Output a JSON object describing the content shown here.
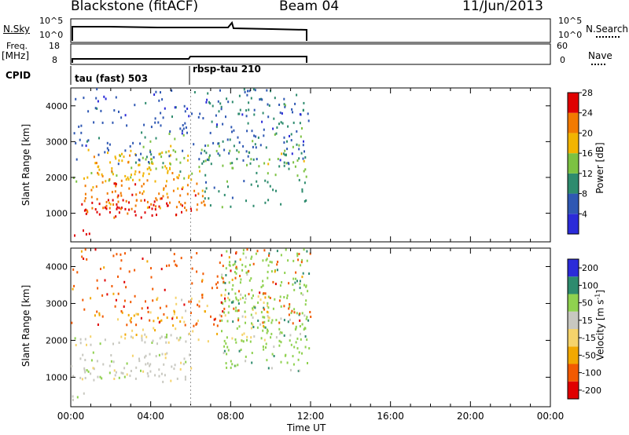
{
  "header": {
    "station": "Blackstone (fitACF)",
    "beam": "Beam 04",
    "date": "11/Jun/2013"
  },
  "side_labels": {
    "nsky": "N.Sky",
    "freq": "Freq.",
    "freq_unit": "[MHz]",
    "cpid": "CPID",
    "nsearch": "N.Search",
    "nave": "Nave"
  },
  "noise_panel": {
    "left_ticks": [
      "10^5",
      "10^0"
    ],
    "right_ticks": [
      "10^5",
      "10^0"
    ]
  },
  "freq_panel": {
    "left_ticks": [
      "18",
      "8"
    ],
    "right_ticks": [
      "60",
      "0"
    ]
  },
  "cpid_panel": {
    "segments": [
      {
        "label": "tau (fast) 503",
        "start_hour": 0
      },
      {
        "label": "rbsp-tau 210",
        "start_hour": 6
      }
    ]
  },
  "chart_data": [
    {
      "type": "heatmap",
      "name": "power",
      "ylabel": "Slant Range [km]",
      "xlim_hours": [
        0,
        24
      ],
      "ylim_km": [
        200,
        4500
      ],
      "yticks": [
        1000,
        2000,
        3000,
        4000
      ],
      "colorbar": {
        "label": "Power [dB]",
        "ticks": [
          "4",
          "8",
          "12",
          "16",
          "20",
          "24",
          "28"
        ],
        "colors": [
          "#2b2bd9",
          "#2f58b3",
          "#2e8b6e",
          "#7cc242",
          "#f2b400",
          "#f27a00",
          "#e00000"
        ]
      },
      "bands": [
        {
          "x": [
            0.0,
            0.9
          ],
          "y": [
            380,
            620
          ],
          "level": 6
        },
        {
          "x": [
            0.0,
            6.0
          ],
          "y": [
            900,
            1400
          ],
          "level": 6
        },
        {
          "x": [
            0.5,
            6.8
          ],
          "y": [
            1100,
            1900
          ],
          "level": 5
        },
        {
          "x": [
            0.0,
            6.0
          ],
          "y": [
            1900,
            2200
          ],
          "level": 4
        },
        {
          "x": [
            0.8,
            5.2
          ],
          "y": [
            2100,
            2800
          ],
          "level": 4
        },
        {
          "x": [
            3.5,
            12.0
          ],
          "y": [
            2000,
            3300
          ],
          "level": 3
        },
        {
          "x": [
            6.5,
            11.9
          ],
          "y": [
            1200,
            4500
          ],
          "level": 2
        },
        {
          "x": [
            0.0,
            12.0
          ],
          "y": [
            2400,
            4500
          ],
          "level": 1
        }
      ]
    },
    {
      "type": "heatmap",
      "name": "velocity",
      "ylabel": "Slant Range [km]",
      "xlabel": "Time UT",
      "xlim_hours": [
        0,
        24
      ],
      "ylim_km": [
        200,
        4500
      ],
      "yticks": [
        1000,
        2000,
        3000,
        4000
      ],
      "xticks": [
        "00:00",
        "04:00",
        "08:00",
        "12:00",
        "16:00",
        "20:00",
        "00:00"
      ],
      "colorbar": {
        "label": "Velocity [m s",
        "label_sup": "-1",
        "label_end": "]",
        "ticks": [
          "-200",
          "-100",
          "-50",
          "-15",
          "15",
          "50",
          "100",
          "200"
        ],
        "colors": [
          "#e00000",
          "#f25a00",
          "#f2a800",
          "#f5d36b",
          "#c8c8c0",
          "#8fd14f",
          "#2e8b6e",
          "#2b2bd9"
        ]
      },
      "bands": [
        {
          "x": [
            0.0,
            0.9
          ],
          "y": [
            380,
            620
          ],
          "level": 4
        },
        {
          "x": [
            0.0,
            6.0
          ],
          "y": [
            900,
            1700
          ],
          "level": 4
        },
        {
          "x": [
            0.0,
            6.0
          ],
          "y": [
            1900,
            2200
          ],
          "level": 4
        },
        {
          "x": [
            0.8,
            5.2
          ],
          "y": [
            2100,
            2800
          ],
          "level": 2
        },
        {
          "x": [
            3.5,
            10.0
          ],
          "y": [
            2000,
            3300
          ],
          "level": 3
        },
        {
          "x": [
            7.5,
            11.9
          ],
          "y": [
            1200,
            4500
          ],
          "level": 5
        },
        {
          "x": [
            0.0,
            12.0
          ],
          "y": [
            2400,
            4500
          ],
          "level": 1
        }
      ]
    }
  ]
}
